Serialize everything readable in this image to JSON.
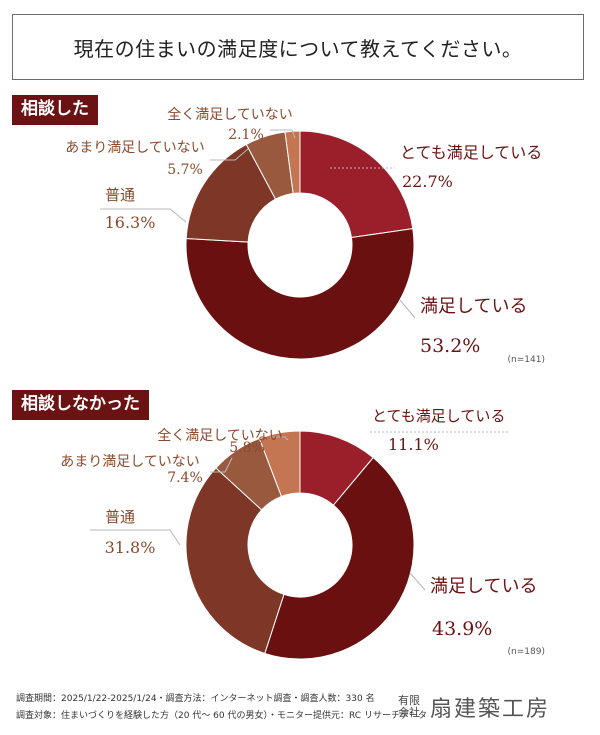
{
  "page": {
    "title": "現在の住まいの満足度について教えてください。"
  },
  "chart_data": [
    {
      "type": "pie",
      "section_label": "相談した",
      "n_label": "(n=141)",
      "slices": [
        {
          "label": "とても満足している",
          "value": 22.7,
          "value_label": "22.7%",
          "color": "#9b1f2a"
        },
        {
          "label": "満足している",
          "value": 53.2,
          "value_label": "53.2%",
          "color": "#6b1010"
        },
        {
          "label": "普通",
          "value": 16.3,
          "value_label": "16.3%",
          "color": "#7e3626"
        },
        {
          "label": "あまり満足していない",
          "value": 5.7,
          "value_label": "5.7%",
          "color": "#98593f"
        },
        {
          "label": "全く満足していない",
          "value": 2.1,
          "value_label": "2.1%",
          "color": "#c47552"
        }
      ]
    },
    {
      "type": "pie",
      "section_label": "相談しなかった",
      "n_label": "(n=189)",
      "slices": [
        {
          "label": "とても満足している",
          "value": 11.1,
          "value_label": "11.1%",
          "color": "#9b1f2a"
        },
        {
          "label": "満足している",
          "value": 43.9,
          "value_label": "43.9%",
          "color": "#6b1010"
        },
        {
          "label": "普通",
          "value": 31.8,
          "value_label": "31.8%",
          "color": "#7e3626"
        },
        {
          "label": "あまり満足していない",
          "value": 7.4,
          "value_label": "7.4%",
          "color": "#98593f"
        },
        {
          "label": "全く満足していない",
          "value": 5.8,
          "value_label": "5.8%",
          "color": "#c47552"
        }
      ]
    }
  ],
  "footer": {
    "line1": "調査期間：2025/1/22-2025/1/24・調査方法：インターネット調査・調査人数：330 名",
    "line2": "調査対象：住まいづくりを経験した方（20 代～ 60 代の男女）・モニター提供元：RC リサーチデータ",
    "logo_small": "有限会社",
    "logo_main": "扇建築工房"
  }
}
